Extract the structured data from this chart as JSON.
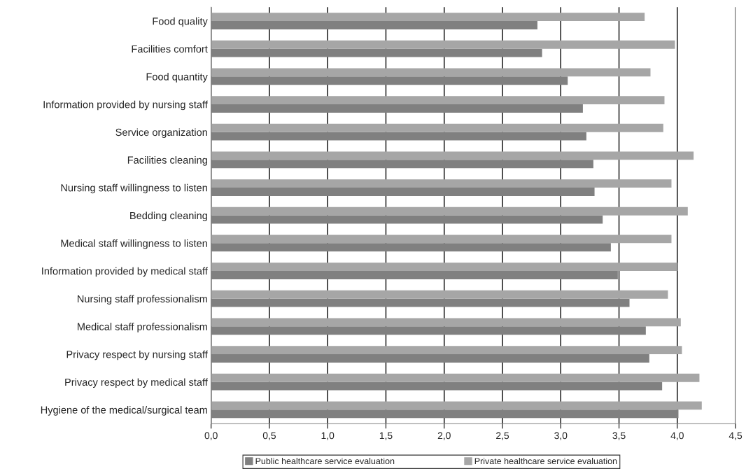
{
  "chart_data": {
    "type": "bar",
    "orientation": "horizontal",
    "categories": [
      "Food quality",
      "Facilities comfort",
      "Food quantity",
      "Information provided by nursing staff",
      "Service organization",
      "Facilities cleaning",
      "Nursing staff willingness to listen",
      "Bedding cleaning",
      "Medical staff willingness to listen",
      "Information provided by medical staff",
      "Nursing staff professionalism",
      "Medical staff professionalism",
      "Privacy respect by nursing staff",
      "Privacy respect by medical staff",
      "Hygiene of the medical/surgical team"
    ],
    "series": [
      {
        "name": "Public healthcare service evaluation",
        "color": "#808080",
        "values": [
          2.8,
          2.84,
          3.06,
          3.19,
          3.22,
          3.28,
          3.29,
          3.36,
          3.43,
          3.49,
          3.59,
          3.73,
          3.76,
          3.87,
          4.01
        ]
      },
      {
        "name": "Private healthcare service evaluation",
        "color": "#a6a6a6",
        "values": [
          3.72,
          3.98,
          3.77,
          3.89,
          3.88,
          4.14,
          3.95,
          4.09,
          3.95,
          4.0,
          3.92,
          4.03,
          4.04,
          4.19,
          4.21
        ]
      }
    ],
    "xlim": [
      0,
      4.5
    ],
    "xticks": [
      {
        "value": 0,
        "label": "0,0"
      },
      {
        "value": 0.5,
        "label": "0,5"
      },
      {
        "value": 1,
        "label": "1,0"
      },
      {
        "value": 1.5,
        "label": "1,5"
      },
      {
        "value": 2,
        "label": "2,0"
      },
      {
        "value": 2.5,
        "label": "2,5"
      },
      {
        "value": 3,
        "label": "3,0"
      },
      {
        "value": 3.5,
        "label": "3,5"
      },
      {
        "value": 4,
        "label": "4,0"
      },
      {
        "value": 4.5,
        "label": "4,5"
      }
    ],
    "grid": "x",
    "legend": "bottom"
  }
}
